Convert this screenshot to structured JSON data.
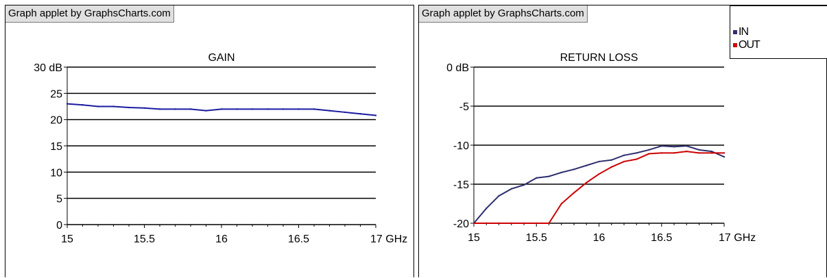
{
  "credit_text": "Graph applet by GraphsCharts.com",
  "colors": {
    "in": "#2e2e6e",
    "out": "#cc0000",
    "gain": "#1a1aa0",
    "grid": "#000000"
  },
  "chart_data": [
    {
      "type": "line",
      "title": "GAIN",
      "x_ticks": [
        "15",
        "15.5",
        "16",
        "16.5",
        "17 GHz"
      ],
      "y_ticks": [
        "30 dB",
        "25",
        "20",
        "15",
        "10",
        "5",
        "0"
      ],
      "xlim": [
        15,
        17
      ],
      "ylim": [
        0,
        30
      ],
      "series": [
        {
          "x": [
            15.0,
            15.1,
            15.2,
            15.3,
            15.4,
            15.5,
            15.6,
            15.7,
            15.8,
            15.9,
            16.0,
            16.1,
            16.2,
            16.3,
            16.4,
            16.5,
            16.6,
            16.7,
            16.8,
            16.9,
            17.0
          ],
          "y": [
            23.0,
            22.8,
            22.5,
            22.5,
            22.3,
            22.2,
            22.0,
            22.0,
            22.0,
            21.7,
            22.0,
            22.0,
            22.0,
            22.0,
            22.0,
            22.0,
            22.0,
            21.7,
            21.4,
            21.1,
            20.8
          ]
        }
      ]
    },
    {
      "type": "line",
      "title": "RETURN LOSS",
      "x_ticks": [
        "15",
        "15.5",
        "16",
        "16.5",
        "17 GHz"
      ],
      "y_ticks": [
        "0 dB",
        "-5",
        "-10",
        "-15",
        "-20"
      ],
      "xlim": [
        15,
        17
      ],
      "ylim": [
        -20,
        0
      ],
      "legend": "top-right",
      "series": [
        {
          "name": "IN",
          "x": [
            15.0,
            15.1,
            15.2,
            15.3,
            15.4,
            15.5,
            15.6,
            15.7,
            15.8,
            15.9,
            16.0,
            16.1,
            16.2,
            16.3,
            16.4,
            16.5,
            16.6,
            16.7,
            16.8,
            16.9,
            17.0
          ],
          "y": [
            -20.0,
            -18.1,
            -16.5,
            -15.6,
            -15.1,
            -14.2,
            -14.0,
            -13.5,
            -13.1,
            -12.6,
            -12.1,
            -11.9,
            -11.3,
            -11.0,
            -10.6,
            -10.1,
            -10.2,
            -10.1,
            -10.6,
            -10.8,
            -11.5
          ]
        },
        {
          "name": "OUT",
          "x": [
            15.0,
            15.1,
            15.2,
            15.3,
            15.4,
            15.5,
            15.6,
            15.7,
            15.8,
            15.9,
            16.0,
            16.1,
            16.2,
            16.3,
            16.4,
            16.5,
            16.6,
            16.7,
            16.8,
            16.9,
            17.0
          ],
          "y": [
            -20.0,
            -20.0,
            -20.0,
            -20.0,
            -20.0,
            -20.0,
            -20.0,
            -17.5,
            -16.1,
            -14.8,
            -13.7,
            -12.8,
            -12.1,
            -11.8,
            -11.1,
            -11.0,
            -11.0,
            -10.8,
            -11.0,
            -11.0,
            -11.0
          ]
        }
      ]
    }
  ]
}
